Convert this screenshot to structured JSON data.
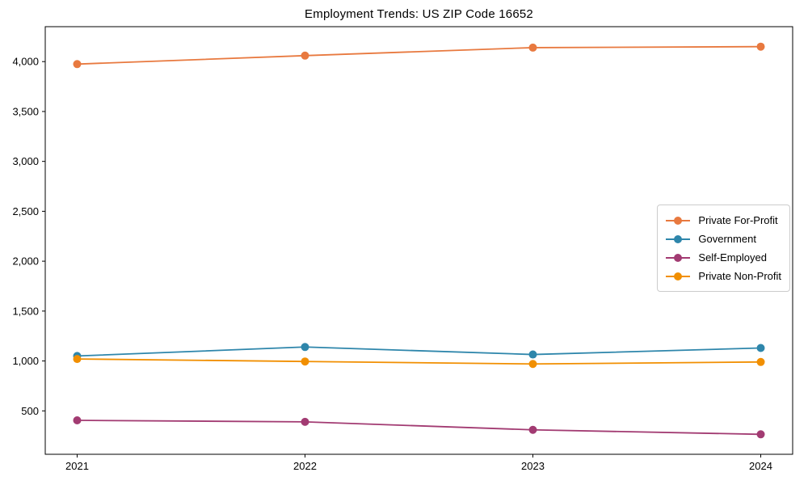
{
  "chart_data": {
    "type": "line",
    "title": "Employment Trends: US ZIP Code 16652",
    "x": [
      2021,
      2022,
      2023,
      2024
    ],
    "x_tick_labels": [
      "2021",
      "2022",
      "2023",
      "2024"
    ],
    "series": [
      {
        "name": "Private For-Profit",
        "color": "#E8793F",
        "values": [
          3975,
          4060,
          4140,
          4150
        ]
      },
      {
        "name": "Government",
        "color": "#2E86AB",
        "values": [
          1050,
          1140,
          1065,
          1130
        ]
      },
      {
        "name": "Self-Employed",
        "color": "#A23B72",
        "values": [
          405,
          390,
          310,
          265
        ]
      },
      {
        "name": "Private Non-Profit",
        "color": "#F18F01",
        "values": [
          1020,
          995,
          970,
          990
        ]
      }
    ],
    "xlim": [
      2020.86,
      2024.14
    ],
    "ylim": [
      65,
      4350
    ],
    "yticks": [
      500,
      1000,
      1500,
      2000,
      2500,
      3000,
      3500,
      4000
    ],
    "ytick_format": "comma",
    "xlabel": "",
    "ylabel": "",
    "grid": false,
    "marker": "circle",
    "legend_position": "center-right",
    "axis_color": "#000000",
    "legend_border_color": "#cccccc"
  }
}
